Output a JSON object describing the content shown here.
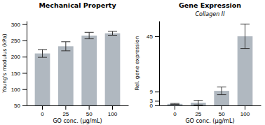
{
  "chart_data": [
    {
      "type": "bar",
      "title": "Mechanical Property",
      "xlabel": "GO conc. (μg/mL)",
      "ylabel": "Young's modulus (kPa)",
      "categories": [
        "0",
        "25",
        "50",
        "100"
      ],
      "values": [
        210,
        232,
        265,
        272
      ],
      "errors": [
        12,
        14,
        10,
        6
      ],
      "color": "#b0b8c0",
      "ylim": [
        50,
        310
      ],
      "yticks": [
        50,
        100,
        150,
        200,
        250,
        300
      ]
    },
    {
      "type": "bar",
      "title": "Gene Expression",
      "subtitle": "Collagen II",
      "xlabel": "GO conc. (μg/mL)",
      "ylabel": "Rel. gene expression",
      "categories": [
        "0",
        "25",
        "50",
        "100"
      ],
      "values": [
        1.0,
        1.8,
        9.5,
        45.0
      ],
      "errors": [
        0.3,
        1.5,
        2.5,
        8.0
      ],
      "color": "#b0b8c0",
      "ylim": [
        0,
        55
      ],
      "yticks": [
        0,
        3,
        9,
        45
      ]
    }
  ]
}
